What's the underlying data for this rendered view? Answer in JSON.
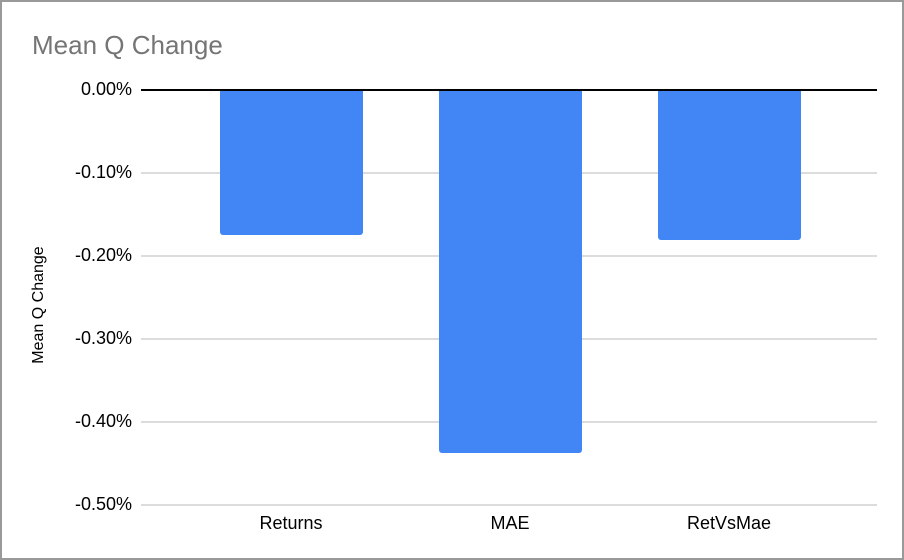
{
  "chart_data": {
    "type": "bar",
    "title": "Mean Q Change",
    "ylabel": "Mean Q Change",
    "xlabel": "",
    "categories": [
      "Returns",
      "MAE",
      "RetVsMae"
    ],
    "values": [
      -0.175,
      -0.437,
      -0.181
    ],
    "value_unit": "percent",
    "ylim": [
      -0.5,
      0
    ],
    "y_ticks": {
      "values": [
        0,
        -0.1,
        -0.2,
        -0.3,
        -0.4,
        -0.5
      ],
      "labels": [
        "0.00%",
        "-0.10%",
        "-0.20%",
        "-0.30%",
        "-0.40%",
        "-0.50%"
      ]
    },
    "grid": true,
    "legend": "none",
    "colors": {
      "bar": "#4285f4",
      "title_text": "#757575",
      "axis_text": "#000000",
      "gridline": "#dcdcdc",
      "zero_line": "#000000",
      "frame_border": "#999999",
      "background": "#ffffff"
    }
  }
}
